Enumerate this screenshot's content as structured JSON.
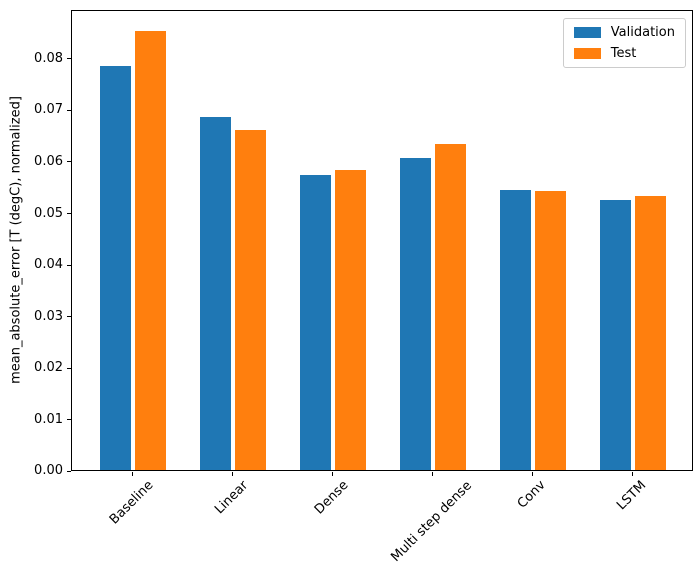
{
  "chart_data": {
    "type": "bar",
    "title": "",
    "categories": [
      "Baseline",
      "Linear",
      "Dense",
      "Multi step dense",
      "Conv",
      "LSTM"
    ],
    "series": [
      {
        "name": "Validation",
        "color": "#1f77b4",
        "values": [
          0.0785,
          0.0686,
          0.0572,
          0.0606,
          0.0544,
          0.0524
        ]
      },
      {
        "name": "Test",
        "color": "#ff7f0e",
        "values": [
          0.0853,
          0.0661,
          0.0583,
          0.0633,
          0.0542,
          0.0533
        ]
      }
    ],
    "xlabel": "",
    "ylabel": "mean_absolute_error [T (degC), normalized]",
    "ylim": [
      0,
      0.0895
    ],
    "yticks": [
      0,
      0.01,
      0.02,
      0.03,
      0.04,
      0.05,
      0.06,
      0.07,
      0.08
    ],
    "ytick_labels": [
      "0.00",
      "0.01",
      "0.02",
      "0.03",
      "0.04",
      "0.05",
      "0.06",
      "0.07",
      "0.08"
    ],
    "xtick_rotation_deg": 45,
    "grid": false,
    "legend": {
      "position": "upper right",
      "entries": [
        "Validation",
        "Test"
      ]
    },
    "axis_color": "#000000",
    "background_color": "#ffffff"
  }
}
